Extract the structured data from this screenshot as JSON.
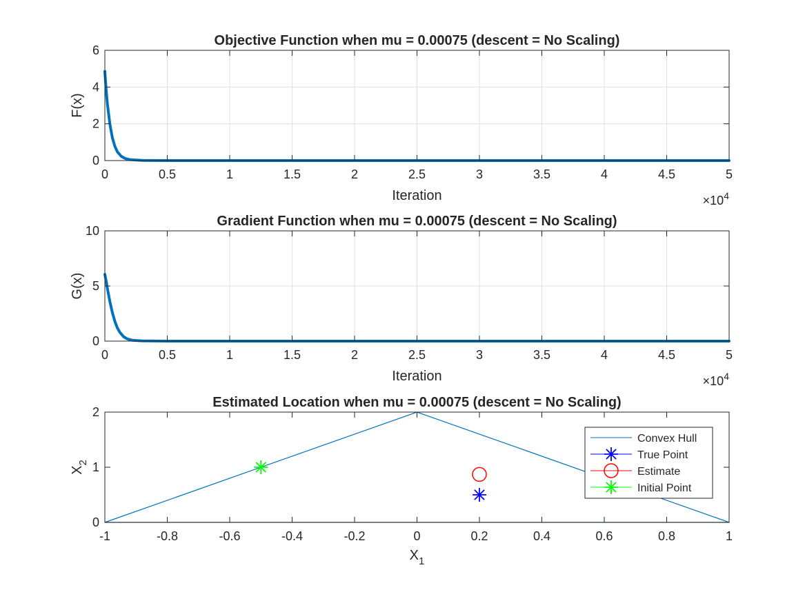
{
  "chart_data": [
    {
      "type": "line",
      "title": "Objective Function when mu = 0.00075 (descent = No Scaling)",
      "xlabel": "Iteration",
      "ylabel": "F(x)",
      "xlim": [
        0,
        50000
      ],
      "ylim": [
        0,
        6
      ],
      "x_ticks": [
        "0",
        "0.5",
        "1",
        "1.5",
        "2",
        "2.5",
        "3",
        "3.5",
        "4",
        "4.5",
        "5"
      ],
      "x_tick_values": [
        0,
        5000,
        10000,
        15000,
        20000,
        25000,
        30000,
        35000,
        40000,
        45000,
        50000
      ],
      "y_ticks": [
        "0",
        "2",
        "4",
        "6"
      ],
      "y_tick_values": [
        0,
        2,
        4,
        6
      ],
      "x_exponent": {
        "base": "×10",
        "power": "4"
      },
      "grid": true,
      "color": "#0072BD",
      "series": [
        {
          "x": [
            0,
            100,
            200,
            400,
            600,
            800,
            1000,
            1300,
            1600,
            2000,
            3000,
            5000,
            10000,
            20000,
            30000,
            40000,
            50000
          ],
          "y": [
            4.85,
            3.9,
            3.1,
            2.0,
            1.25,
            0.78,
            0.48,
            0.24,
            0.12,
            0.05,
            0.01,
            0.0,
            0.0,
            0.0,
            0.0,
            0.0,
            0.0
          ]
        }
      ]
    },
    {
      "type": "line",
      "title": "Gradient Function when mu = 0.00075 (descent = No Scaling)",
      "xlabel": "Iteration",
      "ylabel": "G(x)",
      "xlim": [
        0,
        50000
      ],
      "ylim": [
        0,
        10
      ],
      "x_ticks": [
        "0",
        "0.5",
        "1",
        "1.5",
        "2",
        "2.5",
        "3",
        "3.5",
        "4",
        "4.5",
        "5"
      ],
      "x_tick_values": [
        0,
        5000,
        10000,
        15000,
        20000,
        25000,
        30000,
        35000,
        40000,
        45000,
        50000
      ],
      "y_ticks": [
        "0",
        "5",
        "10"
      ],
      "y_tick_values": [
        0,
        5,
        10
      ],
      "x_exponent": {
        "base": "×10",
        "power": "4"
      },
      "grid": true,
      "color": "#0072BD",
      "series": [
        {
          "x": [
            0,
            100,
            200,
            400,
            600,
            800,
            1000,
            1200,
            1500,
            1800,
            2200,
            3000,
            5000,
            10000,
            20000,
            30000,
            40000,
            50000
          ],
          "y": [
            6.05,
            5.5,
            4.8,
            3.6,
            2.6,
            1.8,
            1.2,
            0.8,
            0.4,
            0.2,
            0.08,
            0.02,
            0.0,
            0.0,
            0.0,
            0.0,
            0.0,
            0.0
          ]
        }
      ]
    },
    {
      "type": "scatter",
      "title": "Estimated Location when mu = 0.00075 (descent = No Scaling)",
      "xlabel": "X",
      "xlabel_sub": "1",
      "ylabel": "X",
      "ylabel_sub": "2",
      "xlim": [
        -1,
        1
      ],
      "ylim": [
        0,
        2
      ],
      "x_ticks": [
        "-1",
        "-0.8",
        "-0.6",
        "-0.4",
        "-0.2",
        "0",
        "0.2",
        "0.4",
        "0.6",
        "0.8",
        "1"
      ],
      "x_tick_values": [
        -1,
        -0.8,
        -0.6,
        -0.4,
        -0.2,
        0,
        0.2,
        0.4,
        0.6,
        0.8,
        1
      ],
      "y_ticks": [
        "0",
        "1",
        "2"
      ],
      "y_tick_values": [
        0,
        1,
        2
      ],
      "grid": false,
      "legend_position": "top-right",
      "series": [
        {
          "name": "Convex Hull",
          "marker": "line",
          "color": "#0072BD",
          "x": [
            -1,
            0,
            1,
            -1
          ],
          "y": [
            0,
            2,
            0,
            0
          ]
        },
        {
          "name": "True Point",
          "marker": "asterisk",
          "color": "#0000FF",
          "x": [
            0.2
          ],
          "y": [
            0.5
          ]
        },
        {
          "name": "Estimate",
          "marker": "circle",
          "color": "#FF0000",
          "x": [
            0.2
          ],
          "y": [
            0.87
          ]
        },
        {
          "name": "Initial Point",
          "marker": "asterisk",
          "color": "#00FF00",
          "x": [
            -0.5
          ],
          "y": [
            1.0
          ]
        }
      ]
    }
  ]
}
